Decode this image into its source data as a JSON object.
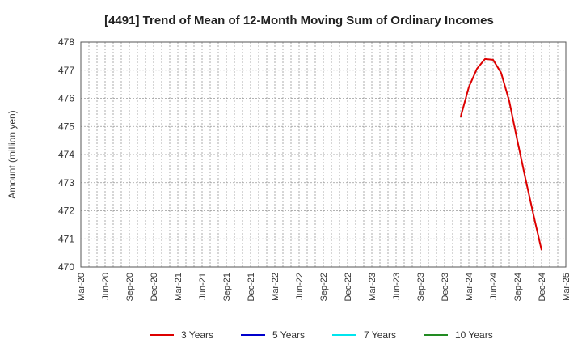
{
  "chart_data": {
    "type": "line",
    "title": "[4491]  Trend of Mean of 12-Month Moving Sum of Ordinary Incomes",
    "xlabel": "",
    "ylabel": "Amount (million yen)",
    "ylim": [
      470,
      478
    ],
    "yticks": [
      "470",
      "471",
      "472",
      "473",
      "474",
      "475",
      "476",
      "477",
      "478"
    ],
    "xlim": [
      "2020-03",
      "2025-03"
    ],
    "xticks": [
      "Mar-20",
      "Jun-20",
      "Sep-20",
      "Dec-20",
      "Mar-21",
      "Jun-21",
      "Sep-21",
      "Dec-21",
      "Mar-22",
      "Jun-22",
      "Sep-22",
      "Dec-22",
      "Mar-23",
      "Jun-23",
      "Sep-23",
      "Dec-23",
      "Mar-24",
      "Jun-24",
      "Sep-24",
      "Dec-24",
      "Mar-25"
    ],
    "grid": true,
    "legend_position": "bottom",
    "series": [
      {
        "name": "3 Years",
        "color": "#dd0000",
        "x": [
          "2024-02",
          "2024-03",
          "2024-04",
          "2024-05",
          "2024-06",
          "2024-07",
          "2024-08",
          "2024-09",
          "2024-10",
          "2024-11",
          "2024-12"
        ],
        "values": [
          475.35,
          476.4,
          477.05,
          477.4,
          477.37,
          476.9,
          475.9,
          474.5,
          473.15,
          471.85,
          470.6
        ]
      },
      {
        "name": "5 Years",
        "color": "#0000cc",
        "x": [],
        "values": []
      },
      {
        "name": "7 Years",
        "color": "#00e5ee",
        "x": [],
        "values": []
      },
      {
        "name": "10 Years",
        "color": "#228b22",
        "x": [],
        "values": []
      }
    ]
  }
}
